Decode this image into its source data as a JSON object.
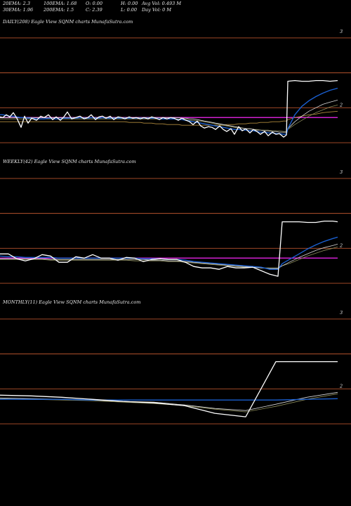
{
  "header": {
    "row1": [
      {
        "label": "20EMA: 2.3"
      },
      {
        "label": "100EMA: 1.68"
      },
      {
        "label": "O: 0.00"
      },
      {
        "label": "H: 0.00"
      },
      {
        "label": "Avg Vol: 0.493 M"
      }
    ],
    "row2": [
      {
        "label": "30EMA: 1.96"
      },
      {
        "label": "200EMA: 1.5"
      },
      {
        "label": "C: 2.39"
      },
      {
        "label": "L: 0.00"
      },
      {
        "label": "Day Vol: 0  M"
      }
    ]
  },
  "chart_data": [
    {
      "type": "line",
      "title": "DAILY(208) Eagle  View  SQNM charts MunafaSutra.com",
      "y_ticks": [
        "3",
        "2"
      ],
      "y_tick_values": [
        3,
        2
      ],
      "ylim": [
        1.43,
        3.14
      ],
      "hlines": [
        {
          "y": 3.0,
          "color": "#b5522c"
        },
        {
          "y": 2.5,
          "color": "#b5522c"
        },
        {
          "y": 1.5,
          "color": "#b5522c"
        },
        {
          "y": 2.0,
          "color": "#b5522c"
        }
      ],
      "magenta_line": 1.86,
      "x": [
        0,
        4,
        9,
        14,
        19,
        24,
        30,
        35,
        40,
        45,
        52,
        58,
        63,
        69,
        75,
        80,
        86,
        91,
        96,
        102,
        108,
        114,
        120,
        125,
        130,
        136,
        141,
        146,
        151,
        157,
        162,
        168,
        173,
        178,
        184,
        189,
        194,
        200,
        205,
        211,
        216,
        222,
        227,
        232,
        238,
        243,
        248,
        254,
        259,
        265,
        270,
        275,
        281,
        286,
        291,
        297,
        302,
        307,
        313,
        318,
        323,
        329,
        334,
        340,
        345,
        350,
        356,
        361,
        366,
        371,
        377,
        382,
        388,
        393,
        398,
        404,
        408,
        410,
        420,
        430,
        440,
        450,
        460,
        470,
        481
      ],
      "series": [
        {
          "color": "#ffffff",
          "width": 1.3,
          "values": [
            1.87,
            1.86,
            1.9,
            1.87,
            1.93,
            1.85,
            1.72,
            1.88,
            1.78,
            1.85,
            1.82,
            1.88,
            1.86,
            1.9,
            1.83,
            1.87,
            1.82,
            1.87,
            1.94,
            1.84,
            1.86,
            1.88,
            1.84,
            1.86,
            1.9,
            1.83,
            1.87,
            1.88,
            1.85,
            1.88,
            1.83,
            1.87,
            1.86,
            1.84,
            1.87,
            1.85,
            1.86,
            1.84,
            1.86,
            1.84,
            1.87,
            1.85,
            1.83,
            1.86,
            1.84,
            1.86,
            1.85,
            1.82,
            1.85,
            1.82,
            1.8,
            1.76,
            1.81,
            1.74,
            1.71,
            1.73,
            1.72,
            1.69,
            1.74,
            1.69,
            1.66,
            1.7,
            1.62,
            1.73,
            1.67,
            1.7,
            1.64,
            1.69,
            1.66,
            1.62,
            1.66,
            1.6,
            1.65,
            1.62,
            1.63,
            1.58,
            1.61,
            2.38,
            2.39,
            2.38,
            2.38,
            2.39,
            2.39,
            2.38,
            2.39
          ]
        },
        {
          "color": "#1a5fd0",
          "width": 1.4,
          "values": [
            1.9,
            1.9,
            1.89,
            1.88,
            1.88,
            1.87,
            1.86,
            1.86,
            1.85,
            1.85,
            1.84,
            1.84,
            1.84,
            1.85,
            1.84,
            1.84,
            1.84,
            1.85,
            1.85,
            1.85,
            1.85,
            1.86,
            1.85,
            1.85,
            1.86,
            1.85,
            1.85,
            1.86,
            1.85,
            1.85,
            1.85,
            1.85,
            1.85,
            1.85,
            1.85,
            1.85,
            1.85,
            1.85,
            1.85,
            1.85,
            1.85,
            1.85,
            1.84,
            1.84,
            1.84,
            1.84,
            1.84,
            1.83,
            1.83,
            1.82,
            1.81,
            1.8,
            1.79,
            1.78,
            1.77,
            1.76,
            1.75,
            1.74,
            1.73,
            1.72,
            1.71,
            1.7,
            1.69,
            1.69,
            1.68,
            1.68,
            1.67,
            1.67,
            1.66,
            1.65,
            1.65,
            1.64,
            1.64,
            1.63,
            1.63,
            1.62,
            1.62,
            1.7,
            1.9,
            2.02,
            2.1,
            2.16,
            2.21,
            2.25,
            2.28
          ]
        },
        {
          "color": "#d8d8d8",
          "width": 0.8,
          "values": [
            1.86,
            1.86,
            1.86,
            1.86,
            1.86,
            1.86,
            1.86,
            1.86,
            1.86,
            1.86,
            1.86,
            1.86,
            1.86,
            1.86,
            1.86,
            1.86,
            1.86,
            1.86,
            1.86,
            1.86,
            1.86,
            1.86,
            1.86,
            1.86,
            1.86,
            1.86,
            1.86,
            1.86,
            1.86,
            1.86,
            1.86,
            1.86,
            1.86,
            1.86,
            1.86,
            1.86,
            1.86,
            1.86,
            1.86,
            1.86,
            1.86,
            1.86,
            1.86,
            1.86,
            1.86,
            1.86,
            1.86,
            1.86,
            1.85,
            1.85,
            1.84,
            1.84,
            1.83,
            1.82,
            1.81,
            1.8,
            1.79,
            1.78,
            1.77,
            1.76,
            1.75,
            1.74,
            1.73,
            1.72,
            1.71,
            1.7,
            1.7,
            1.69,
            1.68,
            1.68,
            1.67,
            1.67,
            1.66,
            1.66,
            1.65,
            1.65,
            1.65,
            1.7,
            1.8,
            1.88,
            1.95,
            2.0,
            2.05,
            2.08,
            2.11
          ]
        },
        {
          "color": "#8b8b5a",
          "width": 0.8,
          "values": [
            1.84,
            1.84,
            1.84,
            1.84,
            1.84,
            1.84,
            1.84,
            1.84,
            1.84,
            1.84,
            1.84,
            1.84,
            1.84,
            1.84,
            1.84,
            1.84,
            1.84,
            1.84,
            1.84,
            1.84,
            1.84,
            1.84,
            1.84,
            1.84,
            1.84,
            1.84,
            1.84,
            1.84,
            1.84,
            1.84,
            1.84,
            1.84,
            1.84,
            1.84,
            1.84,
            1.84,
            1.84,
            1.84,
            1.84,
            1.84,
            1.84,
            1.84,
            1.84,
            1.84,
            1.84,
            1.84,
            1.84,
            1.84,
            1.83,
            1.83,
            1.82,
            1.82,
            1.81,
            1.81,
            1.8,
            1.79,
            1.78,
            1.77,
            1.76,
            1.75,
            1.74,
            1.73,
            1.72,
            1.71,
            1.71,
            1.7,
            1.7,
            1.69,
            1.69,
            1.68,
            1.68,
            1.68,
            1.67,
            1.67,
            1.67,
            1.66,
            1.66,
            1.69,
            1.76,
            1.82,
            1.88,
            1.93,
            1.97,
            2.01,
            2.04
          ]
        },
        {
          "color": "#b08a3c",
          "width": 0.8,
          "values": [
            1.8,
            1.8,
            1.8,
            1.8,
            1.8,
            1.8,
            1.8,
            1.8,
            1.8,
            1.8,
            1.8,
            1.8,
            1.8,
            1.8,
            1.8,
            1.8,
            1.8,
            1.8,
            1.8,
            1.8,
            1.8,
            1.8,
            1.8,
            1.8,
            1.8,
            1.8,
            1.8,
            1.8,
            1.8,
            1.8,
            1.8,
            1.8,
            1.8,
            1.8,
            1.79,
            1.79,
            1.79,
            1.79,
            1.78,
            1.78,
            1.78,
            1.77,
            1.77,
            1.77,
            1.76,
            1.76,
            1.76,
            1.76,
            1.75,
            1.75,
            1.75,
            1.75,
            1.75,
            1.75,
            1.75,
            1.75,
            1.75,
            1.75,
            1.75,
            1.75,
            1.76,
            1.76,
            1.76,
            1.77,
            1.77,
            1.77,
            1.78,
            1.78,
            1.78,
            1.79,
            1.79,
            1.79,
            1.8,
            1.8,
            1.8,
            1.81,
            1.81,
            1.83,
            1.86,
            1.88,
            1.9,
            1.91,
            1.93,
            1.94,
            1.95
          ]
        }
      ]
    },
    {
      "type": "line",
      "title": "WEEKLY(42) Eagle  View  SQNM charts MunafaSutra.com",
      "y_ticks": [
        "3",
        "2"
      ],
      "y_tick_values": [
        3,
        2
      ],
      "ylim": [
        1.43,
        3.14
      ],
      "hlines": [
        {
          "y": 3.0,
          "color": "#b5522c"
        },
        {
          "y": 2.5,
          "color": "#b5522c"
        },
        {
          "y": 1.5,
          "color": "#b5522c"
        },
        {
          "y": 2.0,
          "color": "#b5522c"
        }
      ],
      "magenta_line": 1.86,
      "x": [
        0,
        12,
        24,
        36,
        48,
        60,
        72,
        84,
        96,
        108,
        120,
        132,
        144,
        156,
        168,
        180,
        192,
        204,
        216,
        228,
        240,
        252,
        264,
        276,
        288,
        300,
        312,
        324,
        336,
        348,
        360,
        372,
        384,
        396,
        402,
        414,
        426,
        438,
        450,
        462,
        474,
        481
      ],
      "series": [
        {
          "color": "#ffffff",
          "width": 1.3,
          "values": [
            1.92,
            1.92,
            1.85,
            1.82,
            1.85,
            1.91,
            1.89,
            1.8,
            1.8,
            1.88,
            1.86,
            1.91,
            1.86,
            1.86,
            1.83,
            1.87,
            1.86,
            1.81,
            1.84,
            1.85,
            1.84,
            1.84,
            1.8,
            1.74,
            1.72,
            1.72,
            1.7,
            1.74,
            1.72,
            1.72,
            1.73,
            1.68,
            1.63,
            1.6,
            2.38,
            2.38,
            2.38,
            2.37,
            2.37,
            2.39,
            2.39,
            2.38
          ]
        },
        {
          "color": "#1a5fd0",
          "width": 1.4,
          "values": [
            1.89,
            1.88,
            1.88,
            1.87,
            1.87,
            1.87,
            1.87,
            1.86,
            1.86,
            1.86,
            1.86,
            1.86,
            1.86,
            1.86,
            1.86,
            1.86,
            1.86,
            1.85,
            1.85,
            1.85,
            1.84,
            1.84,
            1.83,
            1.81,
            1.8,
            1.79,
            1.78,
            1.77,
            1.76,
            1.75,
            1.74,
            1.73,
            1.7,
            1.7,
            1.78,
            1.85,
            1.92,
            1.99,
            2.05,
            2.1,
            2.14,
            2.16
          ]
        },
        {
          "color": "#d8d8d8",
          "width": 0.8,
          "values": [
            1.85,
            1.85,
            1.85,
            1.85,
            1.85,
            1.85,
            1.84,
            1.84,
            1.84,
            1.84,
            1.84,
            1.84,
            1.84,
            1.84,
            1.84,
            1.84,
            1.84,
            1.84,
            1.83,
            1.83,
            1.82,
            1.82,
            1.81,
            1.8,
            1.79,
            1.78,
            1.77,
            1.76,
            1.75,
            1.74,
            1.73,
            1.72,
            1.71,
            1.71,
            1.75,
            1.81,
            1.87,
            1.92,
            1.97,
            2.01,
            2.04,
            2.06
          ]
        },
        {
          "color": "#8b8b5a",
          "width": 0.8,
          "values": [
            1.84,
            1.84,
            1.84,
            1.84,
            1.84,
            1.84,
            1.83,
            1.83,
            1.83,
            1.83,
            1.83,
            1.83,
            1.83,
            1.83,
            1.83,
            1.83,
            1.82,
            1.82,
            1.82,
            1.82,
            1.81,
            1.81,
            1.8,
            1.79,
            1.78,
            1.77,
            1.76,
            1.75,
            1.74,
            1.73,
            1.73,
            1.72,
            1.72,
            1.72,
            1.75,
            1.79,
            1.84,
            1.89,
            1.93,
            1.97,
            2.0,
            2.02
          ]
        }
      ]
    },
    {
      "type": "line",
      "title": "MONTHLY(11) Eagle  View  SQNM charts MunafaSutra.com",
      "y_ticks": [
        "3",
        "2"
      ],
      "y_tick_values": [
        3,
        2
      ],
      "ylim": [
        1.43,
        3.14
      ],
      "hlines": [
        {
          "y": 3.0,
          "color": "#b5522c"
        },
        {
          "y": 2.5,
          "color": "#b5522c"
        },
        {
          "y": 1.5,
          "color": "#b5522c"
        },
        {
          "y": 2.0,
          "color": "#b5522c"
        }
      ],
      "magenta_line": null,
      "x": [
        0,
        44,
        88,
        131,
        175,
        219,
        263,
        306,
        350,
        393,
        437,
        481
      ],
      "series": [
        {
          "color": "#ffffff",
          "width": 1.3,
          "values": [
            1.91,
            1.9,
            1.88,
            1.85,
            1.82,
            1.8,
            1.76,
            1.65,
            1.6,
            2.39,
            2.39,
            2.39
          ]
        },
        {
          "color": "#1a5fd0",
          "width": 1.4,
          "values": [
            1.85,
            1.85,
            1.85,
            1.84,
            1.84,
            1.84,
            1.84,
            1.84,
            1.84,
            1.84,
            1.85,
            1.86
          ]
        },
        {
          "color": "#d8d8d8",
          "width": 0.8,
          "values": [
            1.87,
            1.86,
            1.85,
            1.84,
            1.82,
            1.81,
            1.77,
            1.72,
            1.69,
            1.78,
            1.88,
            1.95
          ]
        },
        {
          "color": "#8b8b5a",
          "width": 0.8,
          "values": [
            1.86,
            1.85,
            1.84,
            1.83,
            1.81,
            1.79,
            1.76,
            1.71,
            1.67,
            1.75,
            1.85,
            1.93
          ]
        }
      ]
    }
  ]
}
